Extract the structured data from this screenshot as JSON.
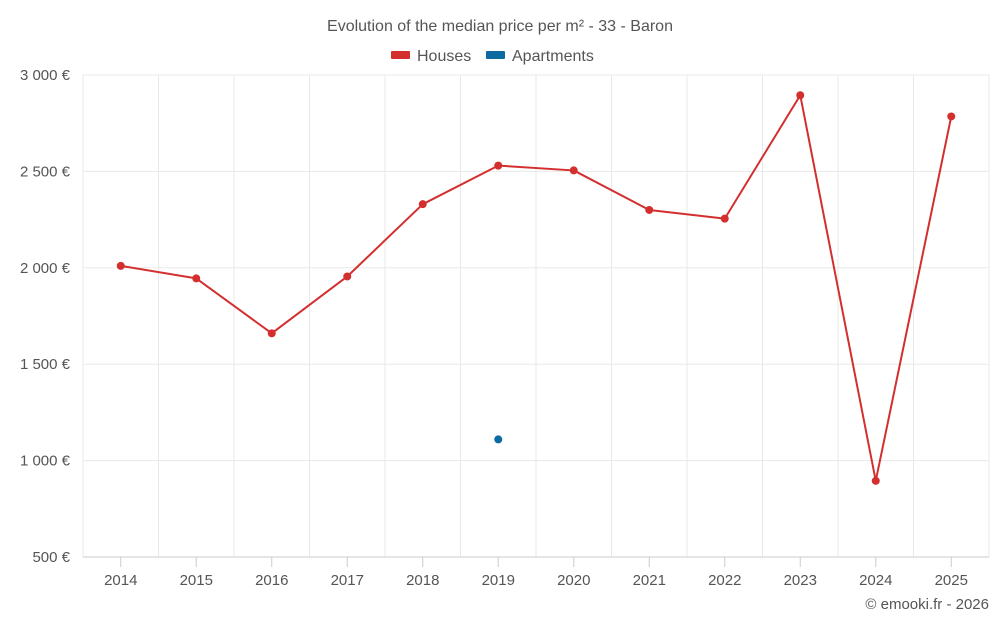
{
  "chart_data": {
    "type": "line",
    "title": "Evolution of the median price per m² - 33 - Baron",
    "categories": [
      "2014",
      "2015",
      "2016",
      "2017",
      "2018",
      "2019",
      "2020",
      "2021",
      "2022",
      "2023",
      "2024",
      "2025"
    ],
    "series": [
      {
        "name": "Houses",
        "color": "#d32f2f",
        "values": [
          2010,
          1945,
          1660,
          1955,
          2330,
          2530,
          2505,
          2300,
          2255,
          2895,
          895,
          2785
        ]
      },
      {
        "name": "Apartments",
        "color": "#0b6aa2",
        "values": [
          null,
          null,
          null,
          null,
          null,
          1110,
          null,
          null,
          null,
          null,
          null,
          null
        ]
      }
    ],
    "ylim": [
      500,
      3000
    ],
    "y_ticks": [
      500,
      1000,
      1500,
      2000,
      2500,
      3000
    ],
    "y_tick_labels": [
      "500 €",
      "1 000 €",
      "1 500 €",
      "2 000 €",
      "2 500 €",
      "3 000 €"
    ],
    "legend_position": "top-center",
    "grid": true
  },
  "credit": "© emooki.fr - 2026"
}
